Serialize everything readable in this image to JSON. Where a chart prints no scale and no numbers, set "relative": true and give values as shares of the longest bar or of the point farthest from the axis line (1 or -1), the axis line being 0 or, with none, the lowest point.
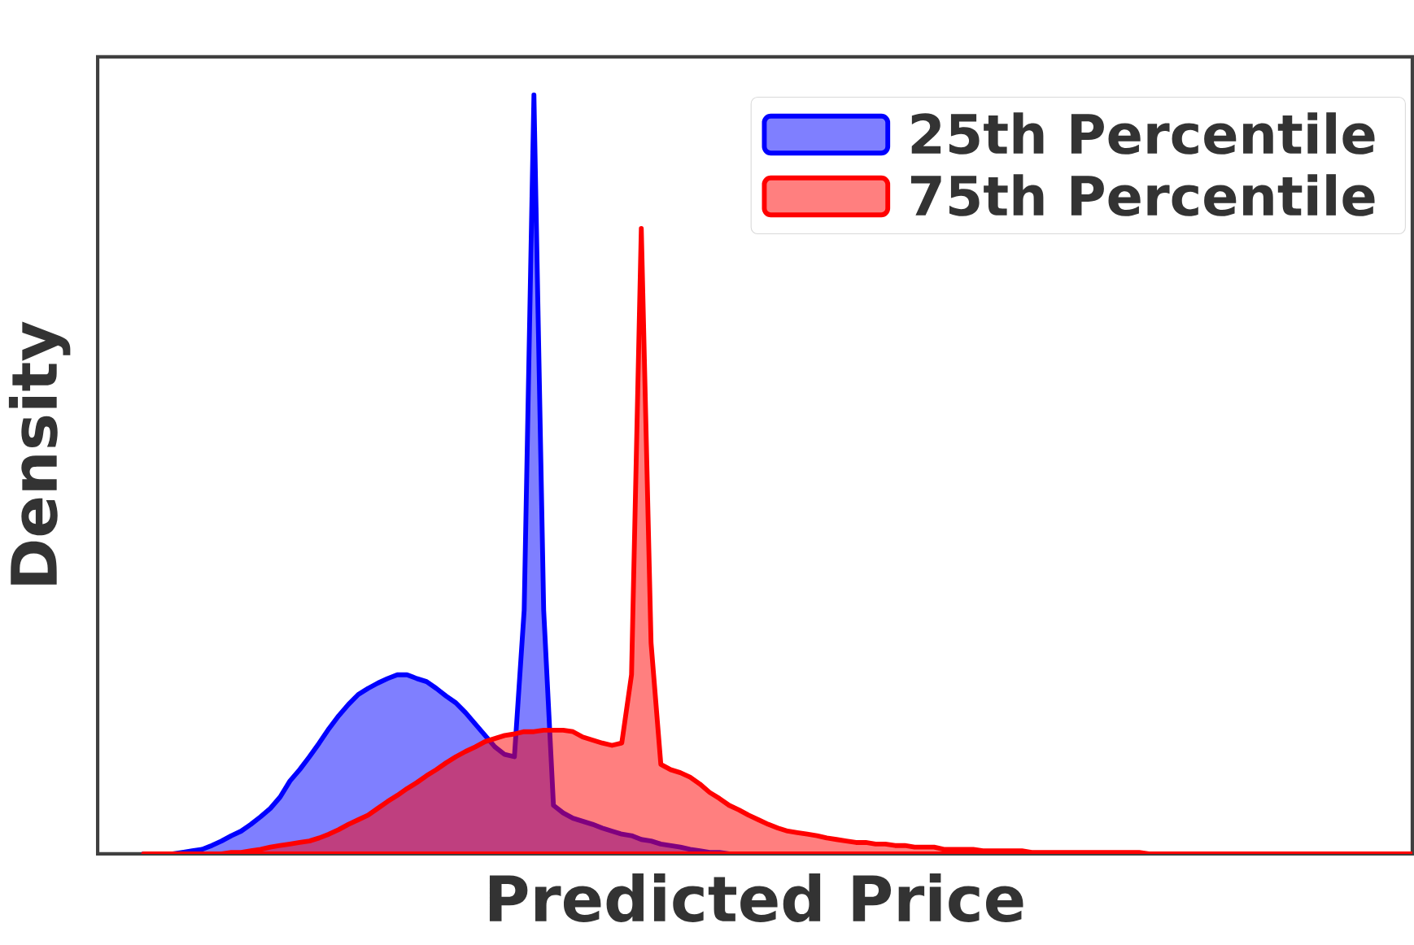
{
  "chart_data": {
    "type": "area",
    "relative": true,
    "xlabel": "Predicted Price",
    "ylabel": "Density",
    "legend": "top right",
    "categories": [
      null,
      null,
      null,
      null,
      null,
      null,
      null,
      null,
      null,
      null,
      null,
      null,
      null,
      null,
      null,
      null,
      null,
      null,
      null,
      null,
      null,
      null,
      null,
      null,
      null,
      null,
      null,
      null,
      null,
      null,
      null,
      null,
      null,
      null,
      null,
      null,
      null,
      null,
      null,
      null,
      null,
      null,
      null,
      null,
      null,
      null,
      null,
      null,
      null,
      null,
      null,
      null,
      null,
      null,
      null,
      null,
      null,
      null,
      null,
      null,
      null,
      null,
      null,
      null,
      null,
      null,
      null,
      null,
      null,
      null,
      null,
      null,
      null,
      null,
      null,
      null,
      null,
      null,
      null,
      null,
      null,
      null,
      null,
      null,
      null,
      null,
      null,
      null,
      null,
      null,
      null,
      null,
      null,
      null,
      null,
      null,
      null,
      null,
      null,
      null,
      null,
      null,
      null,
      null,
      null,
      null,
      null,
      null,
      null,
      null,
      null,
      null,
      null,
      null,
      null,
      null,
      null,
      null,
      null,
      null,
      null,
      null,
      null,
      null,
      null,
      null,
      null,
      null,
      null,
      null,
      null
    ],
    "series": [
      {
        "name": "25th Percentile",
        "color": "#0000ff",
        "values": [
          0,
          0,
          0,
          0,
          0.002,
          0.004,
          0.006,
          0.011,
          0.017,
          0.024,
          0.03,
          0.039,
          0.049,
          0.06,
          0.075,
          0.096,
          0.111,
          0.128,
          0.146,
          0.165,
          0.182,
          0.197,
          0.21,
          0.218,
          0.225,
          0.231,
          0.236,
          0.236,
          0.231,
          0.227,
          0.218,
          0.208,
          0.199,
          0.186,
          0.171,
          0.156,
          0.141,
          0.131,
          0.128,
          0.321,
          1,
          0.321,
          0.064,
          0.054,
          0.047,
          0.043,
          0.039,
          0.034,
          0.03,
          0.026,
          0.024,
          0.019,
          0.017,
          0.013,
          0.011,
          0.009,
          0.006,
          0.004,
          0.002,
          0.002,
          0,
          0,
          0,
          0,
          0,
          0,
          0,
          0,
          0,
          0,
          0,
          0,
          0,
          0,
          0,
          0,
          0,
          0,
          0,
          0,
          0,
          0,
          0,
          0,
          0,
          0,
          0,
          0,
          0,
          0,
          0,
          0,
          0,
          0,
          0,
          0,
          0,
          0,
          0,
          0,
          0,
          0,
          0,
          0,
          0,
          0,
          0,
          0,
          0,
          0,
          0,
          0,
          0,
          0,
          0,
          0,
          0,
          0,
          0,
          0,
          0,
          0,
          0,
          0,
          0,
          0,
          0,
          0,
          0,
          0,
          0
        ]
      },
      {
        "name": "75th Percentile",
        "color": "#ff0000",
        "values": [
          0,
          0,
          0,
          0,
          0,
          0,
          0,
          0,
          0,
          0.002,
          0.002,
          0.004,
          0.006,
          0.009,
          0.011,
          0.013,
          0.015,
          0.017,
          0.021,
          0.026,
          0.032,
          0.039,
          0.045,
          0.051,
          0.06,
          0.069,
          0.077,
          0.086,
          0.094,
          0.103,
          0.111,
          0.12,
          0.128,
          0.135,
          0.141,
          0.148,
          0.152,
          0.156,
          0.158,
          0.161,
          0.161,
          0.163,
          0.163,
          0.163,
          0.161,
          0.154,
          0.15,
          0.146,
          0.143,
          0.146,
          0.236,
          0.824,
          0.278,
          0.118,
          0.111,
          0.107,
          0.101,
          0.092,
          0.081,
          0.073,
          0.064,
          0.058,
          0.051,
          0.045,
          0.039,
          0.034,
          0.03,
          0.028,
          0.026,
          0.024,
          0.021,
          0.019,
          0.017,
          0.015,
          0.015,
          0.013,
          0.013,
          0.011,
          0.011,
          0.009,
          0.009,
          0.009,
          0.006,
          0.006,
          0.006,
          0.006,
          0.004,
          0.004,
          0.004,
          0.004,
          0.004,
          0.002,
          0.002,
          0.002,
          0.002,
          0.002,
          0.002,
          0.002,
          0.002,
          0.002,
          0.002,
          0.002,
          0.002,
          0,
          0,
          0,
          0,
          0,
          0,
          0,
          0,
          0,
          0,
          0,
          0,
          0,
          0,
          0,
          0,
          0,
          0,
          0,
          0,
          0,
          0,
          0,
          0,
          0,
          0,
          0,
          0
        ]
      }
    ]
  }
}
